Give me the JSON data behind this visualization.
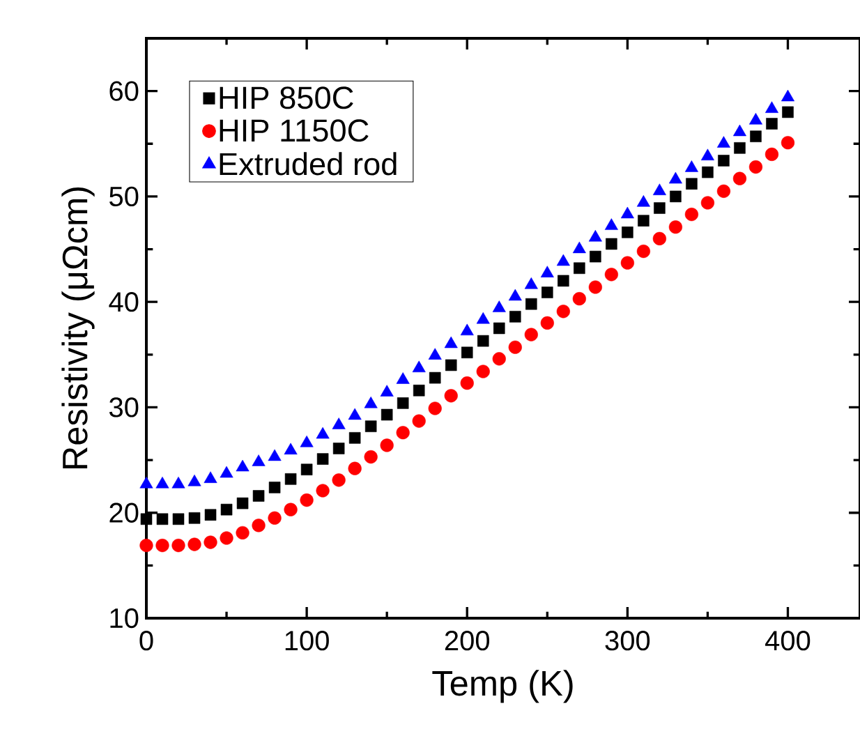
{
  "chart_data": {
    "type": "scatter",
    "xlabel": "Temp (K)",
    "ylabel": "Resistivity (μΩcm)",
    "x": [
      0,
      10,
      20,
      30,
      40,
      50,
      60,
      70,
      80,
      90,
      100,
      110,
      120,
      130,
      140,
      150,
      160,
      170,
      180,
      190,
      200,
      210,
      220,
      230,
      240,
      250,
      260,
      270,
      280,
      290,
      300,
      310,
      320,
      330,
      340,
      350,
      360,
      370,
      380,
      390,
      400
    ],
    "xlim": [
      0,
      445
    ],
    "xticks": [
      0,
      100,
      200,
      300,
      400
    ],
    "ylim": [
      10,
      65
    ],
    "yticks": [
      10,
      20,
      30,
      40,
      50,
      60
    ],
    "legend": "top left",
    "grid": false,
    "series": [
      {
        "name": "HIP 850C",
        "color": "#000000",
        "marker": "square",
        "values": [
          19.4,
          19.4,
          19.4,
          19.5,
          19.8,
          20.3,
          20.9,
          21.6,
          22.4,
          23.2,
          24.1,
          25.1,
          26.1,
          27.1,
          28.2,
          29.3,
          30.4,
          31.6,
          32.8,
          34.0,
          35.2,
          36.3,
          37.5,
          38.6,
          39.8,
          40.9,
          42.0,
          43.2,
          44.3,
          45.5,
          46.6,
          47.7,
          48.9,
          50.0,
          51.2,
          52.3,
          53.4,
          54.6,
          55.7,
          56.9,
          58.0
        ]
      },
      {
        "name": "HIP 1150C",
        "color": "#ff0000",
        "marker": "circle",
        "values": [
          16.9,
          16.9,
          16.9,
          17.0,
          17.2,
          17.6,
          18.1,
          18.8,
          19.5,
          20.3,
          21.2,
          22.1,
          23.1,
          24.2,
          25.3,
          26.4,
          27.6,
          28.7,
          29.9,
          31.1,
          32.3,
          33.4,
          34.6,
          35.7,
          36.9,
          38.0,
          39.1,
          40.3,
          41.4,
          42.6,
          43.7,
          44.8,
          46.0,
          47.1,
          48.3,
          49.4,
          50.5,
          51.7,
          52.8,
          54.0,
          55.1
        ]
      },
      {
        "name": "Extruded rod",
        "color": "#0000ff",
        "marker": "triangle",
        "values": [
          22.7,
          22.7,
          22.7,
          22.9,
          23.2,
          23.7,
          24.3,
          24.8,
          25.3,
          25.9,
          26.6,
          27.4,
          28.3,
          29.2,
          30.3,
          31.4,
          32.6,
          33.7,
          34.9,
          36.0,
          37.2,
          38.3,
          39.4,
          40.5,
          41.6,
          42.7,
          43.8,
          45.0,
          46.1,
          47.2,
          48.3,
          49.4,
          50.5,
          51.6,
          52.7,
          53.8,
          55.0,
          56.1,
          57.2,
          58.3,
          59.4
        ]
      }
    ]
  }
}
